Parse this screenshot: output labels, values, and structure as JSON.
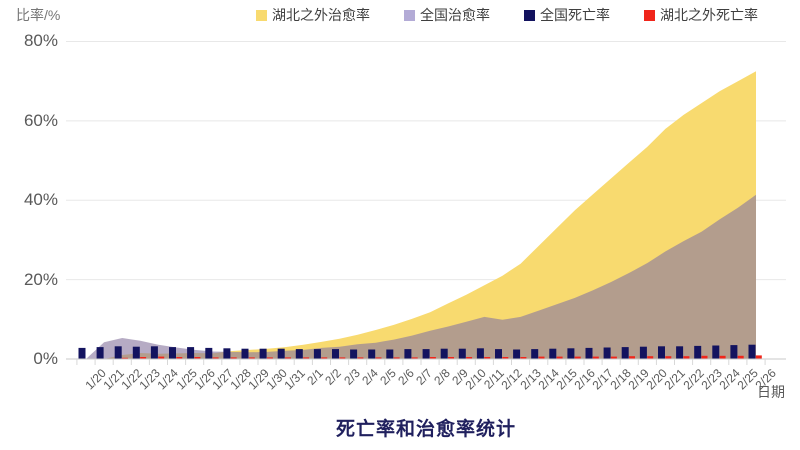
{
  "page": {
    "background": "#FFFFFF"
  },
  "chart": {
    "y_axis_title": "比率/%",
    "x_axis_title": "日期",
    "title": "死亡率和治愈率统计"
  },
  "chart_data": {
    "type": "area",
    "subtype": "overlaid semi-transparent areas with small bars for death rates",
    "title": "死亡率和治愈率统计",
    "xlabel": "日期",
    "ylabel": "比率/%",
    "ylim": [
      0,
      80
    ],
    "y_ticks": [
      "0%",
      "20%",
      "40%",
      "60%",
      "80%"
    ],
    "grid": "horizontal",
    "legend_position": "top",
    "categories": [
      "1/20",
      "1/21",
      "1/22",
      "1/23",
      "1/24",
      "1/25",
      "1/26",
      "1/27",
      "1/28",
      "1/29",
      "1/30",
      "1/31",
      "2/1",
      "2/2",
      "2/3",
      "2/4",
      "2/5",
      "2/6",
      "2/7",
      "2/8",
      "2/9",
      "2/10",
      "2/11",
      "2/12",
      "2/13",
      "2/14",
      "2/15",
      "2/16",
      "2/17",
      "2/18",
      "2/19",
      "2/20",
      "2/21",
      "2/22",
      "2/23",
      "2/24",
      "2/25",
      "2/26"
    ],
    "series": [
      {
        "name": "湖北之外治愈率",
        "type": "area",
        "color": "#F8DA6F",
        "area_fill": "#F8DA6F",
        "values": [
          0,
          0,
          1.0,
          1.5,
          1.3,
          1.4,
          1.5,
          1.4,
          2.0,
          2.3,
          2.6,
          3.0,
          3.6,
          4.3,
          5.1,
          6.1,
          7.3,
          8.6,
          10.1,
          11.8,
          14.0,
          16.2,
          18.6,
          21.0,
          24.0,
          28.5,
          33.0,
          37.5,
          41.5,
          45.5,
          49.5,
          53.5,
          58.0,
          61.5,
          64.5,
          67.5,
          70.0,
          72.5
        ]
      },
      {
        "name": "全国治愈率",
        "type": "area",
        "color": "#B3ABD6",
        "area_fill": "rgba(137,119,160,0.62)",
        "values": [
          0,
          4.2,
          5.3,
          4.6,
          3.6,
          2.9,
          2.3,
          1.9,
          1.8,
          1.7,
          1.8,
          2.1,
          2.3,
          2.8,
          3.1,
          3.7,
          4.1,
          4.9,
          5.9,
          7.1,
          8.2,
          9.4,
          10.6,
          9.9,
          10.6,
          12.2,
          13.8,
          15.4,
          17.3,
          19.4,
          21.7,
          24.2,
          27.1,
          29.7,
          32.1,
          35.2,
          38.1,
          41.4
        ]
      },
      {
        "name": "全国死亡率",
        "type": "bar",
        "color": "#13135F",
        "values": [
          2.8,
          3.0,
          3.2,
          3.1,
          3.2,
          3.0,
          3.0,
          2.8,
          2.7,
          2.6,
          2.6,
          2.6,
          2.5,
          2.5,
          2.5,
          2.4,
          2.4,
          2.4,
          2.5,
          2.5,
          2.6,
          2.6,
          2.7,
          2.5,
          2.4,
          2.5,
          2.6,
          2.7,
          2.8,
          2.9,
          3.0,
          3.1,
          3.2,
          3.2,
          3.3,
          3.4,
          3.5,
          3.6
        ]
      },
      {
        "name": "湖北之外死亡率",
        "type": "bar",
        "color": "#F0251A",
        "values": [
          0,
          0,
          0.3,
          0.5,
          0.6,
          0.5,
          0.5,
          0.4,
          0.4,
          0.4,
          0.4,
          0.4,
          0.4,
          0.4,
          0.4,
          0.4,
          0.4,
          0.4,
          0.4,
          0.5,
          0.5,
          0.5,
          0.5,
          0.5,
          0.5,
          0.6,
          0.6,
          0.6,
          0.6,
          0.6,
          0.7,
          0.7,
          0.7,
          0.7,
          0.8,
          0.8,
          0.8,
          0.9
        ]
      }
    ],
    "colors": {
      "gridline": "#E8E8E8",
      "axis_line": "#C9C9C9",
      "tick_mark": "#D8D8D8",
      "axis_text": "#595959",
      "title_text": "#20205E"
    }
  }
}
